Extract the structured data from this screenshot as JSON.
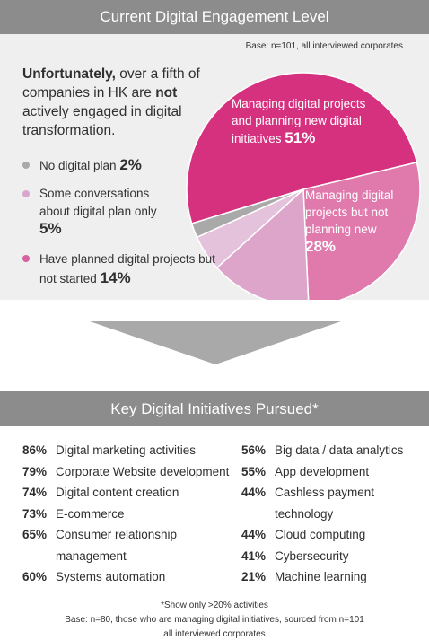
{
  "header1": "Current Digital Engagement Level",
  "base_note": "Base: n=101, all interviewed corporates",
  "lead": {
    "bold1": "Unfortunately,",
    "text1": " over a fifth of companies in HK are ",
    "bold2": "not",
    "text2": " actively engaged in digital transformation."
  },
  "colors": {
    "magenta": "#d6317f",
    "pink": "#e07aad",
    "light_pink": "#dea5cb",
    "gray": "#a9a9a9",
    "header_gray": "#8c8c8c",
    "panel_bg": "#efefef"
  },
  "chart_data": {
    "type": "pie",
    "slices": [
      {
        "label": "Managing digital projects and planning new digital initiatives",
        "value": 51,
        "display": "51%",
        "color": "#d6317f"
      },
      {
        "label": "Managing digital projects but not planning new",
        "value": 28,
        "display": "28%",
        "color": "#e07aad"
      },
      {
        "label": "Have planned digital projects but not started",
        "value": 14,
        "display": "14%",
        "color": "#dea5cb"
      },
      {
        "label": "Some conversations about digital plan only",
        "value": 5,
        "display": "5%",
        "color": "#e5c2dc"
      },
      {
        "label": "No digital plan",
        "value": 2,
        "display": "2%",
        "color": "#a9a9a9"
      }
    ]
  },
  "legend": [
    {
      "text": "No digital plan",
      "pct": "2%",
      "color": "#a9a9a9"
    },
    {
      "text": "Some conversations about digital plan only",
      "pct": "5%",
      "color": "#d9a6cd"
    },
    {
      "text": "Have planned digital projects but not started",
      "pct": "14%",
      "color": "#d6629f"
    }
  ],
  "slice_labels": {
    "s51": {
      "text": "Managing digital projects and planning new digital initiatives",
      "pct": "51%"
    },
    "s28": {
      "text": "Managing digital projects but not planning new",
      "pct": "28%"
    }
  },
  "header2": "Key Digital Initiatives Pursued*",
  "initiatives_left": [
    {
      "pct": "86%",
      "label": "Digital marketing activities"
    },
    {
      "pct": "79%",
      "label": "Corporate Website development"
    },
    {
      "pct": "74%",
      "label": "Digital content creation"
    },
    {
      "pct": "73%",
      "label": "E-commerce"
    },
    {
      "pct": "65%",
      "label": "Consumer relationship management"
    },
    {
      "pct": "60%",
      "label": "Systems automation"
    }
  ],
  "initiatives_right": [
    {
      "pct": "56%",
      "label": "Big data / data analytics"
    },
    {
      "pct": "55%",
      "label": "App development"
    },
    {
      "pct": "44%",
      "label": "Cashless payment technology"
    },
    {
      "pct": "44%",
      "label": "Cloud computing"
    },
    {
      "pct": "41%",
      "label": "Cybersecurity"
    },
    {
      "pct": "21%",
      "label": "Machine learning"
    }
  ],
  "footnote1": "*Show only >20% activities",
  "footnote2": "Base: n=80, those who are managing digital initiatives, sourced from n=101",
  "footnote3": "all interviewed corporates"
}
